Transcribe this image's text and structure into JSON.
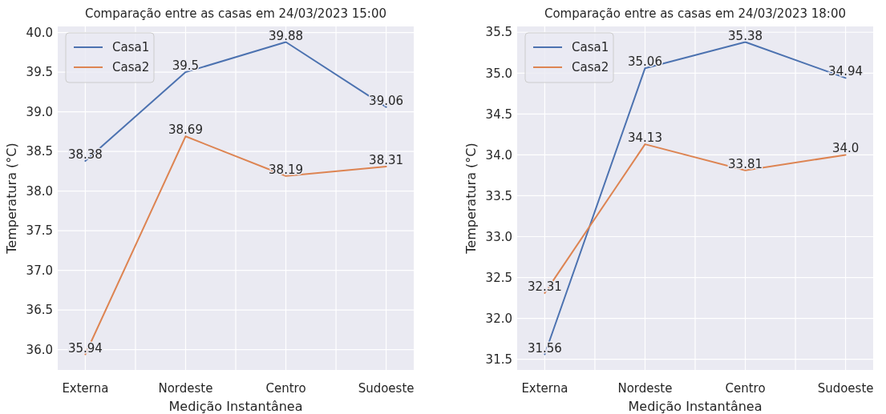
{
  "chart_data": [
    {
      "type": "line",
      "title": "Comparação entre as casas em 24/03/2023 15:00",
      "xlabel": "Medição Instantânea",
      "ylabel": "Temperatura (°C)",
      "categories": [
        "Externa",
        "Nordeste",
        "Centro",
        "Sudoeste"
      ],
      "series": [
        {
          "name": "Casa1",
          "color": "#4c72b0",
          "values": [
            38.38,
            39.5,
            39.88,
            39.06
          ],
          "value_labels": [
            "38.38",
            "39.5",
            "39.88",
            "39.06"
          ]
        },
        {
          "name": "Casa2",
          "color": "#dd8452",
          "values": [
            35.94,
            38.69,
            38.19,
            38.31
          ],
          "value_labels": [
            "35.94",
            "38.69",
            "38.19",
            "38.31"
          ]
        }
      ],
      "ylim": [
        35.743,
        40.077
      ],
      "yticks": [
        {
          "value": 36,
          "label": "36.0"
        },
        36.5,
        {
          "value": 37,
          "label": "37.0"
        },
        37.5,
        {
          "value": 38,
          "label": "38.0"
        },
        38.5,
        {
          "value": 39,
          "label": "39.0"
        },
        39.5,
        {
          "value": 40,
          "label": "40.0"
        }
      ],
      "grid": true,
      "legend": "top left"
    },
    {
      "type": "line",
      "title": "Comparação entre as casas em 24/03/2023 18:00",
      "xlabel": "Medição Instantânea",
      "ylabel": "Temperatura (°C)",
      "categories": [
        "Externa",
        "Nordeste",
        "Centro",
        "Sudoeste"
      ],
      "series": [
        {
          "name": "Casa1",
          "color": "#4c72b0",
          "values": [
            31.56,
            35.06,
            35.38,
            34.94
          ],
          "value_labels": [
            "31.56",
            "35.06",
            "35.38",
            "34.94"
          ]
        },
        {
          "name": "Casa2",
          "color": "#dd8452",
          "values": [
            32.31,
            34.13,
            33.81,
            34.0
          ],
          "value_labels": [
            "32.31",
            "34.13",
            "33.81",
            "34.0"
          ]
        }
      ],
      "ylim": [
        31.369,
        35.571
      ],
      "yticks": [
        31.5,
        {
          "value": 32,
          "label": "32.0"
        },
        32.5,
        {
          "value": 33,
          "label": "33.0"
        },
        33.5,
        {
          "value": 34,
          "label": "34.0"
        },
        34.5,
        {
          "value": 35,
          "label": "35.0"
        },
        35.5
      ],
      "grid": true,
      "legend": "top left"
    }
  ]
}
